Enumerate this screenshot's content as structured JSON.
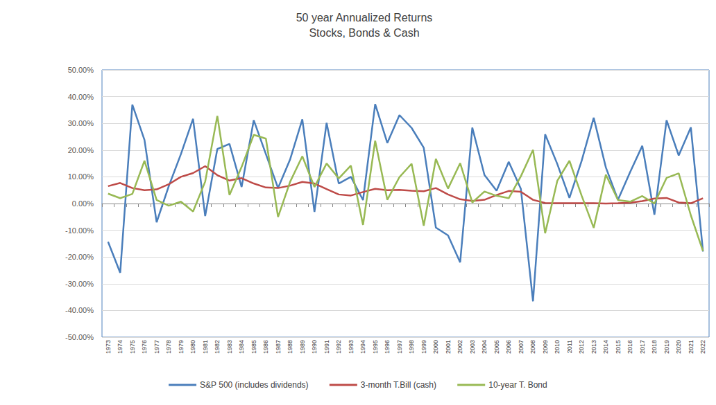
{
  "chart_data": {
    "type": "line",
    "title": "50 year Annualized Returns",
    "subtitle": "Stocks, Bonds & Cash",
    "categories": [
      "1973",
      "1974",
      "1975",
      "1976",
      "1977",
      "1978",
      "1979",
      "1980",
      "1981",
      "1982",
      "1983",
      "1984",
      "1985",
      "1986",
      "1987",
      "1988",
      "1989",
      "1990",
      "1991",
      "1992",
      "1993",
      "1994",
      "1995",
      "1996",
      "1997",
      "1998",
      "1999",
      "2000",
      "2001",
      "2002",
      "2003",
      "2004",
      "2005",
      "2006",
      "2007",
      "2008",
      "2009",
      "2010",
      "2011",
      "2012",
      "2013",
      "2014",
      "2015",
      "2016",
      "2017",
      "2018",
      "2019",
      "2020",
      "2021",
      "2022"
    ],
    "series": [
      {
        "name": "S&P 500 (includes dividends)",
        "color": "#4a7ebb",
        "values": [
          -14.3,
          -25.9,
          37.0,
          23.8,
          -7.0,
          6.5,
          18.5,
          31.7,
          -4.7,
          20.4,
          22.3,
          6.2,
          31.2,
          18.5,
          5.8,
          16.6,
          31.5,
          -3.1,
          30.2,
          7.5,
          10.0,
          1.3,
          37.2,
          22.7,
          33.1,
          28.3,
          20.9,
          -9.0,
          -11.9,
          -22.0,
          28.4,
          10.7,
          4.8,
          15.6,
          5.5,
          -36.6,
          25.9,
          14.8,
          2.1,
          15.9,
          32.1,
          13.5,
          1.4,
          11.8,
          21.6,
          -4.2,
          31.2,
          18.0,
          28.5,
          -18.0
        ]
      },
      {
        "name": "3-month T.Bill (cash)",
        "color": "#be4b48",
        "values": [
          6.5,
          7.7,
          5.8,
          5.0,
          5.3,
          7.2,
          10.0,
          11.4,
          14.0,
          10.6,
          8.6,
          9.5,
          7.5,
          6.0,
          5.8,
          6.7,
          8.1,
          7.5,
          5.4,
          3.4,
          3.0,
          4.3,
          5.5,
          5.0,
          5.1,
          4.8,
          4.6,
          5.8,
          3.4,
          1.6,
          1.0,
          1.4,
          3.2,
          4.7,
          4.4,
          1.4,
          0.2,
          0.1,
          0.1,
          0.1,
          0.1,
          0.0,
          0.1,
          0.3,
          0.9,
          1.9,
          2.1,
          0.4,
          0.1,
          2.0
        ]
      },
      {
        "name": "10-year T. Bond",
        "color": "#98b954",
        "values": [
          3.7,
          2.0,
          3.6,
          16.0,
          1.3,
          -0.8,
          0.7,
          -3.0,
          8.2,
          32.8,
          3.2,
          13.7,
          25.7,
          24.3,
          -5.0,
          8.2,
          17.7,
          6.2,
          15.0,
          9.4,
          14.2,
          -8.0,
          23.5,
          1.4,
          9.9,
          14.9,
          -8.3,
          16.7,
          5.6,
          15.1,
          0.4,
          4.5,
          2.9,
          2.0,
          10.2,
          20.1,
          -11.1,
          8.5,
          16.0,
          3.0,
          -9.1,
          10.8,
          1.3,
          0.7,
          2.8,
          0.0,
          9.6,
          11.3,
          -4.4,
          -17.8
        ]
      }
    ],
    "ylim": [
      -50,
      50
    ],
    "yticks": [
      {
        "value": -50,
        "label": "-50.00%"
      },
      {
        "value": -40,
        "label": "-40.00%"
      },
      {
        "value": -30,
        "label": "-30.00%"
      },
      {
        "value": -20,
        "label": "-20.00%"
      },
      {
        "value": -10,
        "label": "-10.00%"
      },
      {
        "value": 0,
        "label": "0.00%"
      },
      {
        "value": 10,
        "label": "10.00%"
      },
      {
        "value": 20,
        "label": "20.00%"
      },
      {
        "value": 30,
        "label": "30.00%"
      },
      {
        "value": 40,
        "label": "40.00%"
      },
      {
        "value": 50,
        "label": "50.00%"
      }
    ],
    "grid": true,
    "legend": "bottom"
  }
}
